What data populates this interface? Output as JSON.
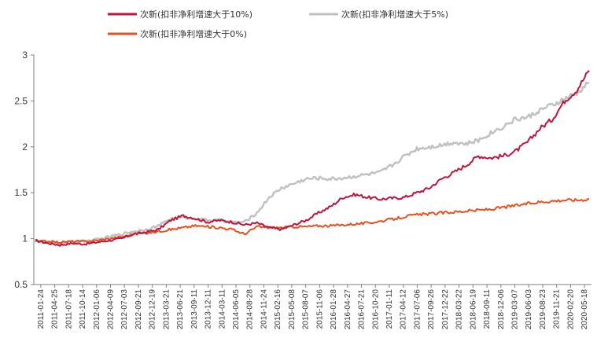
{
  "chart_data": {
    "type": "line",
    "legend_placement": "top",
    "grid": false,
    "ylim": [
      0.5,
      3
    ],
    "yticks": [
      "0.5",
      "1",
      "1.5",
      "2",
      "2.5",
      "3"
    ],
    "x_tick_labels": [
      "2011-01-24",
      "2011-04-25",
      "2011-07-18",
      "2011-10-14",
      "2012-01-06",
      "2012-04-09",
      "2012-07-03",
      "2012-09-21",
      "2012-12-19",
      "2013-03-21",
      "2013-06-21",
      "2013-09-11",
      "2013-12-11",
      "2014-03-11",
      "2014-06-05",
      "2014-08-28",
      "2014-11-24",
      "2015-02-16",
      "2015-05-08",
      "2015-08-07",
      "2015-11-06",
      "2016-01-28",
      "2016-04-27",
      "2016-07-21",
      "2016-10-20",
      "2017-01-11",
      "2017-04-12",
      "2017-07-06",
      "2017-09-26",
      "2017-12-22",
      "2018-03-22",
      "2018-06-19",
      "2018-09-11",
      "2018-12-06",
      "2019-03-07",
      "2019-06-03",
      "2019-08-23",
      "2019-11-21",
      "2020-02-20",
      "2020-05-18"
    ],
    "series": [
      {
        "name": "次新(扣非净利增速大于10%)",
        "color": "#c0143c",
        "values": [
          0.98,
          0.95,
          0.93,
          0.95,
          0.94,
          0.96,
          0.98,
          1.0,
          1.05,
          1.07,
          1.1,
          1.2,
          1.25,
          1.22,
          1.18,
          1.2,
          1.18,
          1.15,
          1.17,
          1.12,
          1.1,
          1.15,
          1.2,
          1.28,
          1.35,
          1.45,
          1.48,
          1.45,
          1.43,
          1.44,
          1.45,
          1.5,
          1.55,
          1.65,
          1.72,
          1.8,
          1.9,
          1.88,
          1.9,
          1.95,
          2.05,
          2.2,
          2.3,
          2.5,
          2.62,
          2.83
        ]
      },
      {
        "name": "次新(扣非净利增速大于5%)",
        "color": "#c0c0c0",
        "values": [
          0.98,
          0.96,
          0.95,
          0.97,
          0.97,
          0.99,
          1.02,
          1.05,
          1.08,
          1.1,
          1.14,
          1.22,
          1.23,
          1.22,
          1.2,
          1.2,
          1.18,
          1.18,
          1.28,
          1.45,
          1.55,
          1.6,
          1.65,
          1.66,
          1.65,
          1.66,
          1.68,
          1.7,
          1.72,
          1.8,
          1.9,
          1.98,
          2.0,
          2.02,
          2.05,
          2.03,
          2.07,
          2.15,
          2.22,
          2.3,
          2.32,
          2.4,
          2.45,
          2.52,
          2.58,
          2.7
        ]
      },
      {
        "name": "次新(扣非净利增速大于0%)",
        "color": "#e8501e",
        "values": [
          0.97,
          0.97,
          0.96,
          0.97,
          0.97,
          0.98,
          1.0,
          1.02,
          1.05,
          1.06,
          1.08,
          1.1,
          1.12,
          1.14,
          1.13,
          1.12,
          1.1,
          1.05,
          1.13,
          1.12,
          1.12,
          1.13,
          1.13,
          1.14,
          1.14,
          1.15,
          1.16,
          1.17,
          1.19,
          1.21,
          1.24,
          1.26,
          1.27,
          1.28,
          1.29,
          1.3,
          1.31,
          1.32,
          1.34,
          1.36,
          1.38,
          1.4,
          1.41,
          1.42,
          1.42,
          1.43
        ]
      }
    ]
  }
}
